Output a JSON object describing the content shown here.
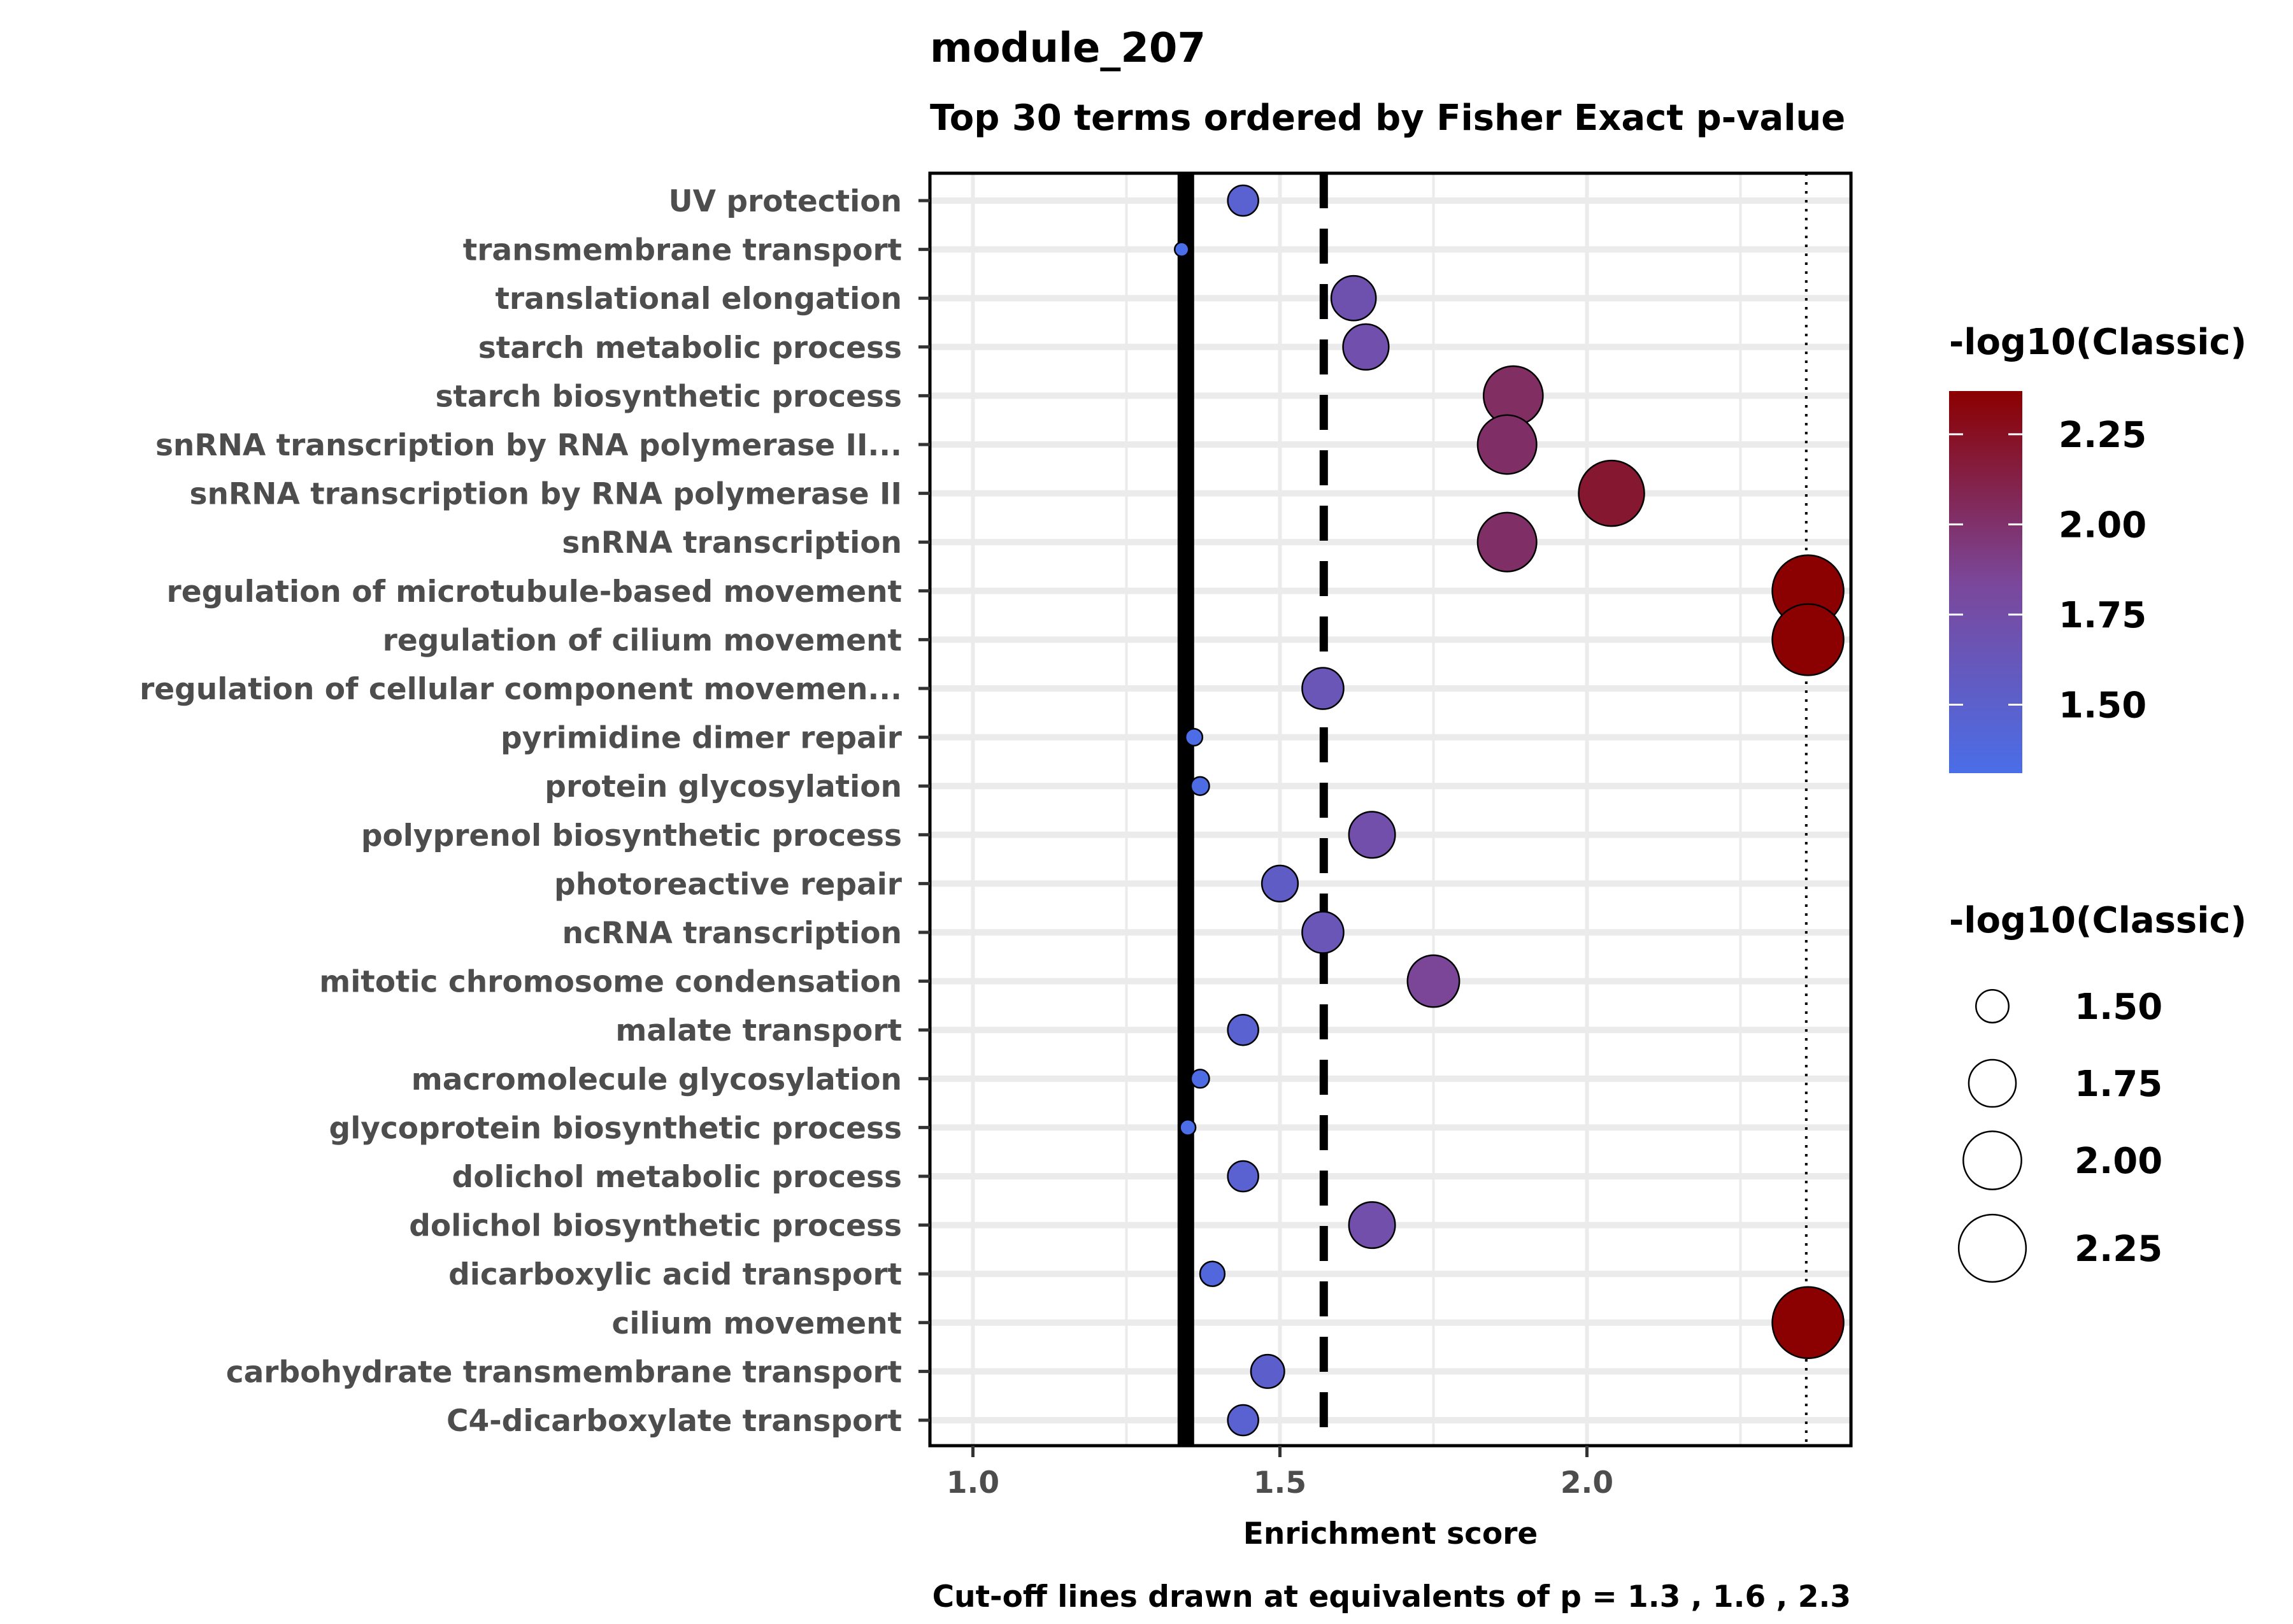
{
  "chart_data": {
    "type": "scatter",
    "title": "module_207",
    "subtitle": "Top 30 terms ordered by Fisher Exact p-value",
    "xlabel": "Enrichment score",
    "caption": "Cut-off lines drawn at equivalents of p = 1.3 , 1.6 , 2.3",
    "xlim": [
      0.93,
      2.43
    ],
    "xticks": [
      1.0,
      1.5,
      2.0
    ],
    "xtick_labels": [
      "1.0",
      "1.5",
      "2.0"
    ],
    "grid": true,
    "cutoff_lines": [
      {
        "x": 1.3468,
        "style": "solid"
      },
      {
        "x": 1.5714,
        "style": "dashed"
      },
      {
        "x": 2.3572,
        "style": "dotted"
      }
    ],
    "categories": [
      "UV protection",
      "transmembrane transport",
      "translational elongation",
      "starch metabolic process",
      "starch biosynthetic process",
      "snRNA transcription by RNA polymerase II...",
      "snRNA transcription by RNA polymerase II",
      "snRNA transcription",
      "regulation of microtubule-based movement",
      "regulation of cilium movement",
      "regulation of cellular component movemen...",
      "pyrimidine dimer repair",
      "protein glycosylation",
      "polyprenol biosynthetic process",
      "photoreactive repair",
      "ncRNA transcription",
      "mitotic chromosome condensation",
      "malate transport",
      "macromolecule glycosylation",
      "glycoprotein biosynthetic process",
      "dolichol metabolic process",
      "dolichol biosynthetic process",
      "dicarboxylic acid transport",
      "cilium movement",
      "carbohydrate transmembrane transport",
      "C4-dicarboxylate transport"
    ],
    "x": [
      1.44,
      1.34,
      1.62,
      1.64,
      1.88,
      1.87,
      2.04,
      1.87,
      2.36,
      2.36,
      1.57,
      1.36,
      1.37,
      1.65,
      1.5,
      1.57,
      1.75,
      1.44,
      1.37,
      1.35,
      1.44,
      1.65,
      1.39,
      2.36,
      1.48,
      1.44
    ],
    "color_value": [
      1.47,
      1.31,
      1.7,
      1.72,
      2.03,
      2.02,
      2.2,
      2.02,
      2.37,
      2.37,
      1.64,
      1.33,
      1.34,
      1.73,
      1.55,
      1.64,
      1.85,
      1.47,
      1.34,
      1.32,
      1.47,
      1.73,
      1.4,
      2.37,
      1.51,
      1.47
    ],
    "size_value": [
      1.47,
      1.31,
      1.7,
      1.72,
      2.03,
      2.02,
      2.2,
      2.02,
      2.37,
      2.37,
      1.64,
      1.33,
      1.34,
      1.73,
      1.55,
      1.64,
      1.85,
      1.47,
      1.34,
      1.32,
      1.47,
      1.73,
      1.4,
      2.37,
      1.51,
      1.47
    ],
    "color_legend": {
      "title": "-log10(Classic)",
      "range": [
        1.31,
        2.37
      ],
      "low_color": "#4a6ee8",
      "mid_color": "#7b479a",
      "high_color": "#8b0000",
      "breaks": [
        2.25,
        2.0,
        1.75,
        1.5
      ],
      "labels": [
        "2.25",
        "2.00",
        "1.75",
        "1.50"
      ]
    },
    "size_legend": {
      "title": "-log10(Classic)",
      "breaks": [
        1.5,
        1.75,
        2.0,
        2.25
      ],
      "labels": [
        "1.50",
        "1.75",
        "2.00",
        "2.25"
      ]
    }
  }
}
